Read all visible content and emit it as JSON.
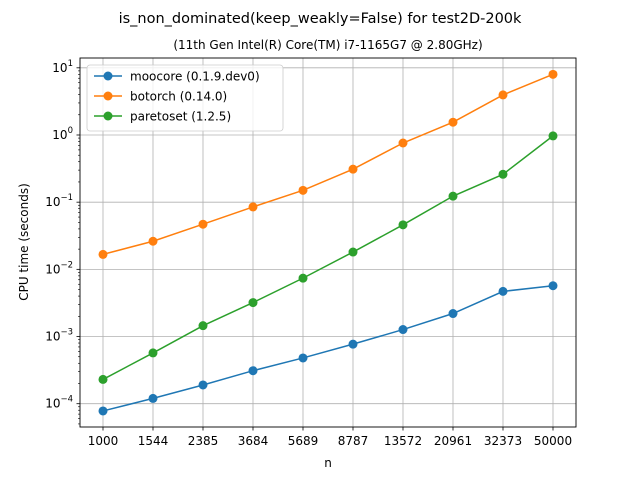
{
  "chart_data": {
    "type": "line",
    "title": "is_non_dominated(keep_weakly=False) for test2D-200k",
    "subtitle": "(11th Gen Intel(R) Core(TM) i7-1165G7 @ 2.80GHz)",
    "xlabel": "n",
    "ylabel": "CPU time (seconds)",
    "categories": [
      "1000",
      "1544",
      "2385",
      "3684",
      "5689",
      "8787",
      "13572",
      "20961",
      "32373",
      "50000"
    ],
    "y_scale": "log",
    "ylim": [
      4.5e-05,
      14
    ],
    "y_ticks": [
      {
        "value": 0.0001,
        "base": "10",
        "exp": "−4"
      },
      {
        "value": 0.001,
        "base": "10",
        "exp": "−3"
      },
      {
        "value": 0.01,
        "base": "10",
        "exp": "−2"
      },
      {
        "value": 0.1,
        "base": "10",
        "exp": "−1"
      },
      {
        "value": 1,
        "base": "10",
        "exp": "0"
      },
      {
        "value": 10,
        "base": "10",
        "exp": "1"
      }
    ],
    "grid": true,
    "legend_position": "top-left",
    "series": [
      {
        "name": "moocore (0.1.9.dev0)",
        "color": "#1f77b4",
        "values": [
          7.8e-05,
          0.00012,
          0.00019,
          0.00031,
          0.00048,
          0.00077,
          0.00127,
          0.0022,
          0.0047,
          0.0057
        ]
      },
      {
        "name": "botorch (0.14.0)",
        "color": "#ff7f0e",
        "values": [
          0.0167,
          0.0262,
          0.047,
          0.085,
          0.15,
          0.31,
          0.76,
          1.55,
          3.95,
          8.0
        ]
      },
      {
        "name": "paretoset (1.2.5)",
        "color": "#2ca02c",
        "values": [
          0.00023,
          0.00057,
          0.00145,
          0.0032,
          0.0074,
          0.0181,
          0.046,
          0.123,
          0.26,
          0.97
        ]
      }
    ]
  }
}
